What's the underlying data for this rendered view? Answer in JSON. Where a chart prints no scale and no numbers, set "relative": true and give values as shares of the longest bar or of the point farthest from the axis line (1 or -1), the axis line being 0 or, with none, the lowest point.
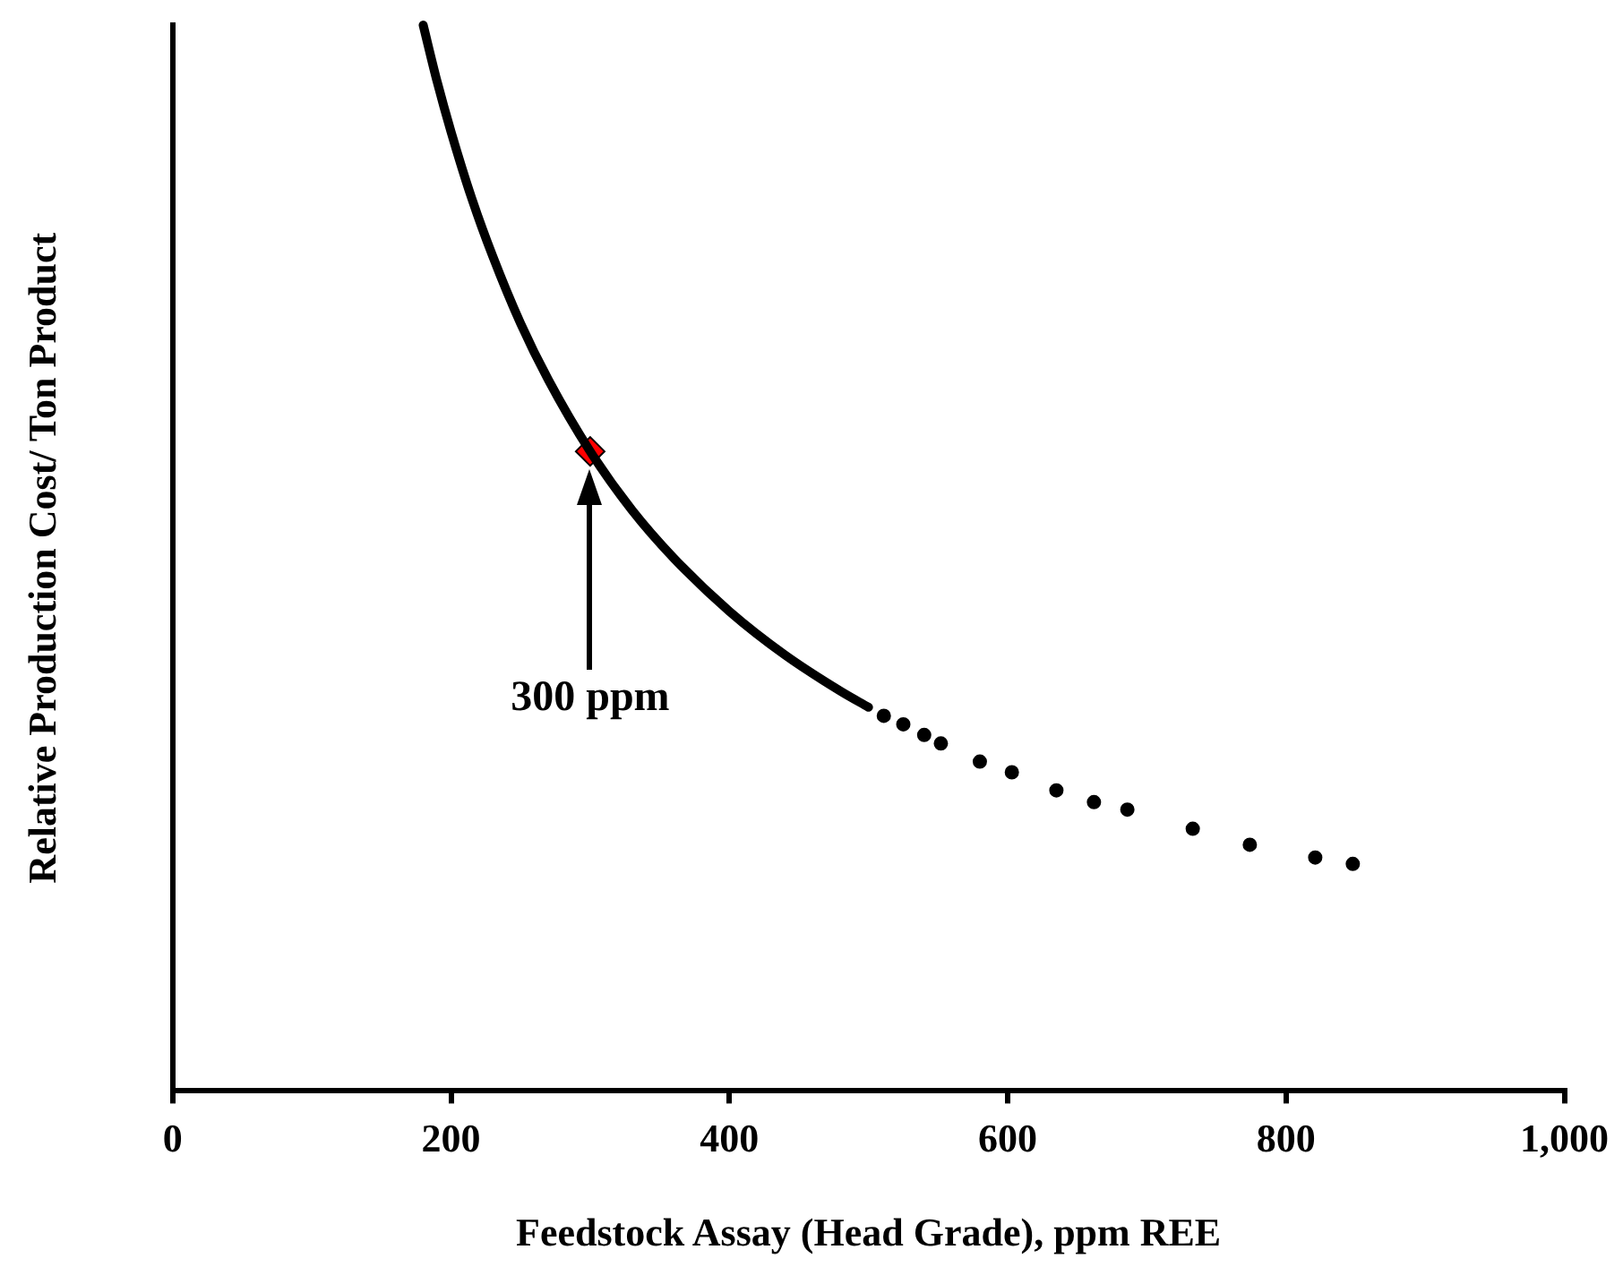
{
  "chart_data": {
    "type": "scatter",
    "relative": true,
    "xlabel": "Feedstock Assay (Head Grade), ppm REE",
    "ylabel": "Relative Production Cost/ Ton Product",
    "xlim": [
      0,
      1000
    ],
    "xticks": [
      0,
      200,
      400,
      600,
      800,
      {
        "value": 1000,
        "label": "1,000"
      }
    ],
    "grid": false,
    "legend": false,
    "series": [
      {
        "type": "line",
        "color": "#000000",
        "marker": "none",
        "x": [
          180,
          190,
          200,
          215,
          230,
          250,
          270,
          300,
          330,
          360,
          400,
          440,
          480,
          500
        ],
        "values": [
          1.0,
          0.947,
          0.9,
          0.837,
          0.783,
          0.72,
          0.667,
          0.6,
          0.545,
          0.5,
          0.45,
          0.409,
          0.375,
          0.36
        ]
      },
      {
        "color": "#000000",
        "marker": "circle",
        "x": [
          511,
          525,
          540,
          552,
          580,
          603,
          635,
          662,
          686,
          733,
          774,
          821,
          848
        ],
        "values": [
          0.352,
          0.344,
          0.334,
          0.326,
          0.309,
          0.299,
          0.282,
          0.271,
          0.264,
          0.246,
          0.231,
          0.219,
          0.213
        ]
      },
      {
        "color": "#ff0000",
        "marker": "diamond",
        "x": [
          300
        ],
        "values": [
          0.6
        ]
      }
    ],
    "annotations": [
      "300 ppm"
    ]
  }
}
